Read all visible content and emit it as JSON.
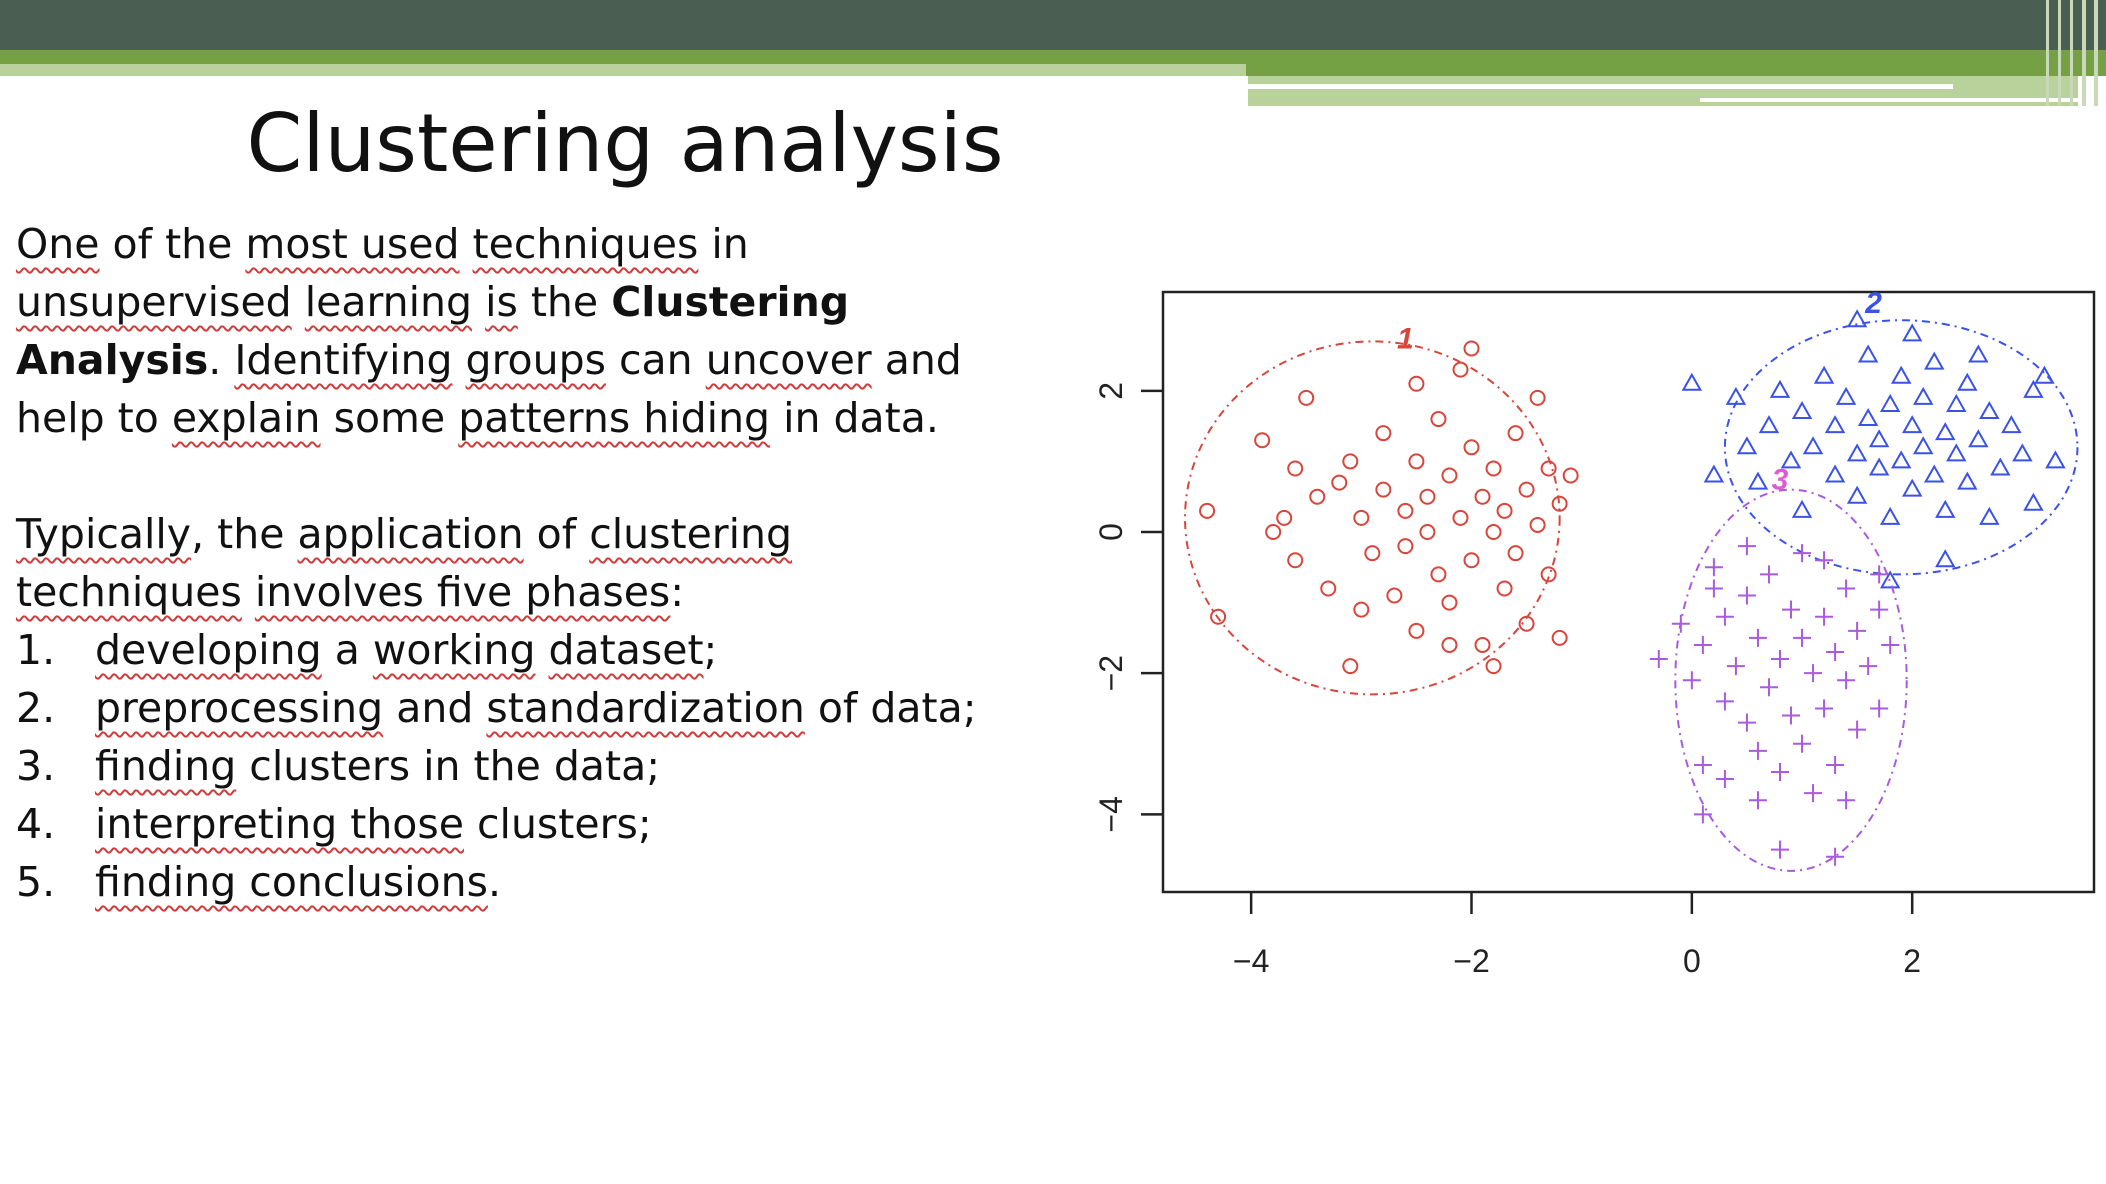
{
  "slide": {
    "title": "Clustering analysis",
    "paragraph1": [
      {
        "text": "One",
        "sq": true
      },
      {
        "text": " of the "
      },
      {
        "text": "most used",
        "sq": true
      },
      {
        "text": " "
      },
      {
        "text": "techniques",
        "sq": true
      },
      {
        "text": " in "
      },
      {
        "text": "unsupervised",
        "sq": true
      },
      {
        "text": " "
      },
      {
        "text": "learning",
        "sq": true
      },
      {
        "text": " "
      },
      {
        "text": "is",
        "sq": true
      },
      {
        "text": " the "
      },
      {
        "text": "Clustering Analysis",
        "bold": true
      },
      {
        "text": ". "
      },
      {
        "text": "Identifying",
        "sq": true
      },
      {
        "text": " "
      },
      {
        "text": "groups",
        "sq": true
      },
      {
        "text": " can "
      },
      {
        "text": "uncover",
        "sq": true
      },
      {
        "text": " and help to "
      },
      {
        "text": "explain",
        "sq": true
      },
      {
        "text": " some "
      },
      {
        "text": "patterns hiding",
        "sq": true
      },
      {
        "text": " in data."
      }
    ],
    "paragraph2": [
      {
        "text": "Typically",
        "sq": true
      },
      {
        "text": ", the "
      },
      {
        "text": "application",
        "sq": true
      },
      {
        "text": " of "
      },
      {
        "text": "clustering techniques",
        "sq": true
      },
      {
        "text": " "
      },
      {
        "text": "involves five phases",
        "sq": true
      },
      {
        "text": ":"
      }
    ],
    "phases": [
      {
        "num": "1.",
        "parts": [
          {
            "text": "developing",
            "sq": true
          },
          {
            "text": " a "
          },
          {
            "text": "working",
            "sq": true
          },
          {
            "text": " "
          },
          {
            "text": "dataset",
            "sq": true
          },
          {
            "text": ";"
          }
        ]
      },
      {
        "num": "2.",
        "parts": [
          {
            "text": "preprocessing",
            "sq": true
          },
          {
            "text": " and "
          },
          {
            "text": "standardization",
            "sq": true
          },
          {
            "text": " of data;"
          }
        ]
      },
      {
        "num": "3.",
        "parts": [
          {
            "text": "finding",
            "sq": true
          },
          {
            "text": " clusters in the data;"
          }
        ]
      },
      {
        "num": "4.",
        "parts": [
          {
            "text": "interpreting those",
            "sq": true
          },
          {
            "text": " clusters;"
          }
        ]
      },
      {
        "num": "5.",
        "parts": [
          {
            "text": "finding conclusions",
            "sq": true
          },
          {
            "text": "."
          }
        ]
      }
    ]
  },
  "colors": {
    "banner_dark": "#4a5e52",
    "banner_green": "#76a044",
    "banner_light": "#b9d19a",
    "cluster1": "#d8453a",
    "cluster2": "#3a52e8",
    "cluster3": "#a85ae0",
    "cluster3_label": "#e05ad0"
  },
  "chart_data": {
    "type": "scatter",
    "title": "",
    "xlabel": "",
    "ylabel": "",
    "xlim": [
      -4.8,
      3.65
    ],
    "ylim": [
      -5.1,
      3.4
    ],
    "xticks": [
      -4,
      -2,
      0,
      2
    ],
    "yticks": [
      -4,
      -2,
      0,
      2
    ],
    "xtick_labels": [
      "-4",
      "-2",
      "0",
      "2"
    ],
    "ytick_labels": [
      "-4",
      "-2",
      "0",
      "2"
    ],
    "grid": false,
    "series": [
      {
        "label": "1",
        "marker": "circle",
        "color": "#d8453a",
        "label_pos": [
          -2.6,
          2.6
        ],
        "ellipse": {
          "cx": -2.9,
          "cy": 0.2,
          "rx": 1.7,
          "ry": 2.5
        },
        "points": [
          [
            -4.4,
            0.3
          ],
          [
            -4.3,
            -1.2
          ],
          [
            -3.9,
            1.3
          ],
          [
            -3.8,
            0.0
          ],
          [
            -3.7,
            0.2
          ],
          [
            -3.6,
            -0.4
          ],
          [
            -3.5,
            1.9
          ],
          [
            -3.4,
            0.5
          ],
          [
            -3.3,
            -0.8
          ],
          [
            -3.2,
            0.7
          ],
          [
            -3.1,
            1.0
          ],
          [
            -3.0,
            0.2
          ],
          [
            -3.0,
            -1.1
          ],
          [
            -2.9,
            -0.3
          ],
          [
            -2.8,
            0.6
          ],
          [
            -2.8,
            1.4
          ],
          [
            -2.7,
            -0.9
          ],
          [
            -2.6,
            0.3
          ],
          [
            -2.6,
            -0.2
          ],
          [
            -2.5,
            1.0
          ],
          [
            -2.5,
            -1.4
          ],
          [
            -2.4,
            0.5
          ],
          [
            -2.4,
            0.0
          ],
          [
            -2.3,
            -0.6
          ],
          [
            -2.3,
            1.6
          ],
          [
            -2.2,
            0.8
          ],
          [
            -2.2,
            -1.0
          ],
          [
            -2.1,
            0.2
          ],
          [
            -2.1,
            2.3
          ],
          [
            -2.0,
            -0.4
          ],
          [
            -2.0,
            1.2
          ],
          [
            -1.9,
            0.5
          ],
          [
            -1.9,
            -1.6
          ],
          [
            -1.8,
            0.0
          ],
          [
            -1.8,
            0.9
          ],
          [
            -1.7,
            -0.8
          ],
          [
            -1.7,
            0.3
          ],
          [
            -1.6,
            1.4
          ],
          [
            -1.6,
            -0.3
          ],
          [
            -1.5,
            0.6
          ],
          [
            -1.5,
            -1.3
          ],
          [
            -1.4,
            0.1
          ],
          [
            -1.3,
            0.9
          ],
          [
            -1.3,
            -0.6
          ],
          [
            -1.2,
            0.4
          ],
          [
            -1.2,
            -1.5
          ],
          [
            -1.1,
            0.8
          ],
          [
            -3.1,
            -1.9
          ],
          [
            -2.2,
            -1.6
          ],
          [
            -1.8,
            -1.9
          ],
          [
            -2.5,
            2.1
          ],
          [
            -1.4,
            1.9
          ],
          [
            -2.0,
            2.6
          ],
          [
            -3.6,
            0.9
          ]
        ]
      },
      {
        "label": "2",
        "marker": "triangle",
        "color": "#3a52e8",
        "label_pos": [
          1.65,
          3.1
        ],
        "ellipse": {
          "cx": 1.9,
          "cy": 1.2,
          "rx": 1.6,
          "ry": 1.8
        },
        "points": [
          [
            0.0,
            2.1
          ],
          [
            0.2,
            0.8
          ],
          [
            0.4,
            1.9
          ],
          [
            0.5,
            1.2
          ],
          [
            0.6,
            0.7
          ],
          [
            0.7,
            1.5
          ],
          [
            0.8,
            2.0
          ],
          [
            0.9,
            1.0
          ],
          [
            1.0,
            1.7
          ],
          [
            1.0,
            0.3
          ],
          [
            1.1,
            1.2
          ],
          [
            1.2,
            2.2
          ],
          [
            1.3,
            0.8
          ],
          [
            1.3,
            1.5
          ],
          [
            1.4,
            1.9
          ],
          [
            1.5,
            0.5
          ],
          [
            1.5,
            1.1
          ],
          [
            1.6,
            1.6
          ],
          [
            1.6,
            2.5
          ],
          [
            1.7,
            0.9
          ],
          [
            1.7,
            1.3
          ],
          [
            1.8,
            1.8
          ],
          [
            1.8,
            0.2
          ],
          [
            1.9,
            1.0
          ],
          [
            1.9,
            2.2
          ],
          [
            2.0,
            1.5
          ],
          [
            2.0,
            0.6
          ],
          [
            2.1,
            1.2
          ],
          [
            2.1,
            1.9
          ],
          [
            2.2,
            0.8
          ],
          [
            2.2,
            2.4
          ],
          [
            2.3,
            1.4
          ],
          [
            2.3,
            0.3
          ],
          [
            2.4,
            1.1
          ],
          [
            2.4,
            1.8
          ],
          [
            2.5,
            0.7
          ],
          [
            2.5,
            2.1
          ],
          [
            2.6,
            1.3
          ],
          [
            2.7,
            0.2
          ],
          [
            2.7,
            1.7
          ],
          [
            2.8,
            0.9
          ],
          [
            2.9,
            1.5
          ],
          [
            3.0,
            1.1
          ],
          [
            3.1,
            0.4
          ],
          [
            3.1,
            2.0
          ],
          [
            3.3,
            1.0
          ],
          [
            1.8,
            -0.7
          ],
          [
            2.3,
            -0.4
          ],
          [
            1.5,
            3.0
          ],
          [
            2.0,
            2.8
          ],
          [
            2.6,
            2.5
          ],
          [
            3.2,
            2.2
          ]
        ]
      },
      {
        "label": "3",
        "marker": "plus",
        "color": "#a85ae0",
        "label_pos": [
          0.8,
          0.6
        ],
        "ellipse": {
          "cx": 0.9,
          "cy": -2.1,
          "rx": 1.05,
          "ry": 2.7
        },
        "points": [
          [
            -0.3,
            -1.8
          ],
          [
            -0.1,
            -1.3
          ],
          [
            0.0,
            -2.1
          ],
          [
            0.1,
            -1.6
          ],
          [
            0.2,
            -0.8
          ],
          [
            0.3,
            -2.4
          ],
          [
            0.3,
            -1.2
          ],
          [
            0.4,
            -1.9
          ],
          [
            0.5,
            -0.9
          ],
          [
            0.5,
            -2.7
          ],
          [
            0.6,
            -1.5
          ],
          [
            0.6,
            -3.1
          ],
          [
            0.7,
            -2.2
          ],
          [
            0.7,
            -0.6
          ],
          [
            0.8,
            -1.8
          ],
          [
            0.8,
            -3.4
          ],
          [
            0.9,
            -1.1
          ],
          [
            0.9,
            -2.6
          ],
          [
            1.0,
            -1.5
          ],
          [
            1.0,
            -3.0
          ],
          [
            1.0,
            -0.3
          ],
          [
            1.1,
            -2.0
          ],
          [
            1.1,
            -3.7
          ],
          [
            1.2,
            -1.2
          ],
          [
            1.2,
            -2.5
          ],
          [
            1.3,
            -1.7
          ],
          [
            1.3,
            -3.3
          ],
          [
            1.4,
            -0.8
          ],
          [
            1.4,
            -2.1
          ],
          [
            1.5,
            -1.4
          ],
          [
            1.5,
            -2.8
          ],
          [
            1.6,
            -1.9
          ],
          [
            1.7,
            -1.1
          ],
          [
            1.7,
            -2.5
          ],
          [
            1.8,
            -1.6
          ],
          [
            0.1,
            -3.3
          ],
          [
            0.3,
            -3.5
          ],
          [
            0.6,
            -3.8
          ],
          [
            0.1,
            -4.0
          ],
          [
            0.8,
            -4.5
          ],
          [
            1.3,
            -4.6
          ],
          [
            1.4,
            -3.8
          ],
          [
            0.2,
            -0.5
          ],
          [
            0.5,
            -0.2
          ],
          [
            1.2,
            -0.4
          ],
          [
            1.7,
            -0.6
          ]
        ]
      }
    ]
  }
}
